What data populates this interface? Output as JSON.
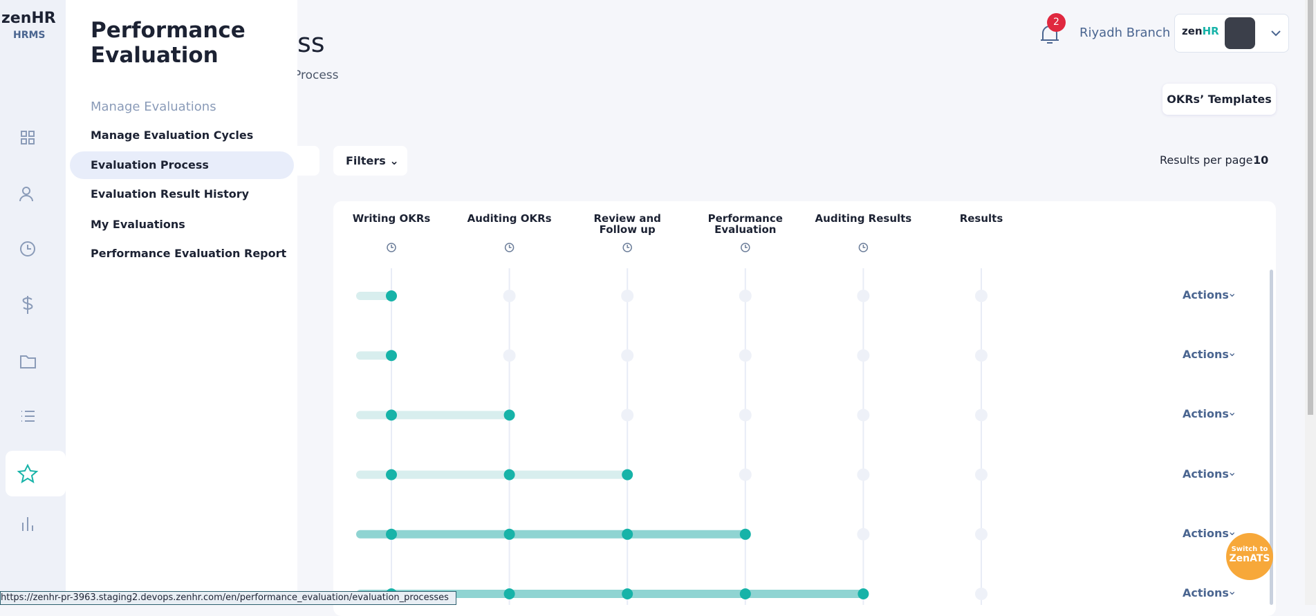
{
  "brand": {
    "name": "zenHR",
    "product": "HRMS"
  },
  "menu": {
    "title": "Performance Evaluation",
    "section": "Manage Evaluations",
    "items": [
      "Manage Evaluation Cycles",
      "Evaluation Process",
      "Evaluation Result History",
      "My Evaluations",
      "Performance Evaluation Report"
    ],
    "selected": 1
  },
  "header": {
    "title_fragment": "ss",
    "breadcrumb_fragment": "Process",
    "notifications": 2,
    "branch": "Riyadh Branch",
    "templates_button": "OKRs’ Templates"
  },
  "toolbar": {
    "filters": "Filters",
    "results_label": "Results per page",
    "results_value": "10"
  },
  "table": {
    "columns": [
      "Writing OKRs",
      "Auditing OKRs",
      "Review and Follow up",
      "Performance Evaluation",
      "Auditing Results",
      "Results"
    ],
    "rows": [
      {
        "completed": 1,
        "bar_color": "#d8eeee",
        "action": "Actions"
      },
      {
        "completed": 1,
        "bar_color": "#d8eeee",
        "action": "Actions"
      },
      {
        "completed": 2,
        "bar_color": "#d8eeee",
        "action": "Actions"
      },
      {
        "completed": 3,
        "bar_color": "#d8eeee",
        "action": "Actions"
      },
      {
        "completed": 4,
        "bar_color": "#8fd4d2",
        "action": "Actions"
      },
      {
        "completed": 5,
        "bar_color": "#8fd4d2",
        "action": "Actions"
      }
    ]
  },
  "switch": {
    "line1": "Switch to",
    "line2": "ZenATS"
  },
  "status_url": "https://zenhr-pr-3963.staging2.devops.zenhr.com/en/performance_evaluation/evaluation_processes"
}
